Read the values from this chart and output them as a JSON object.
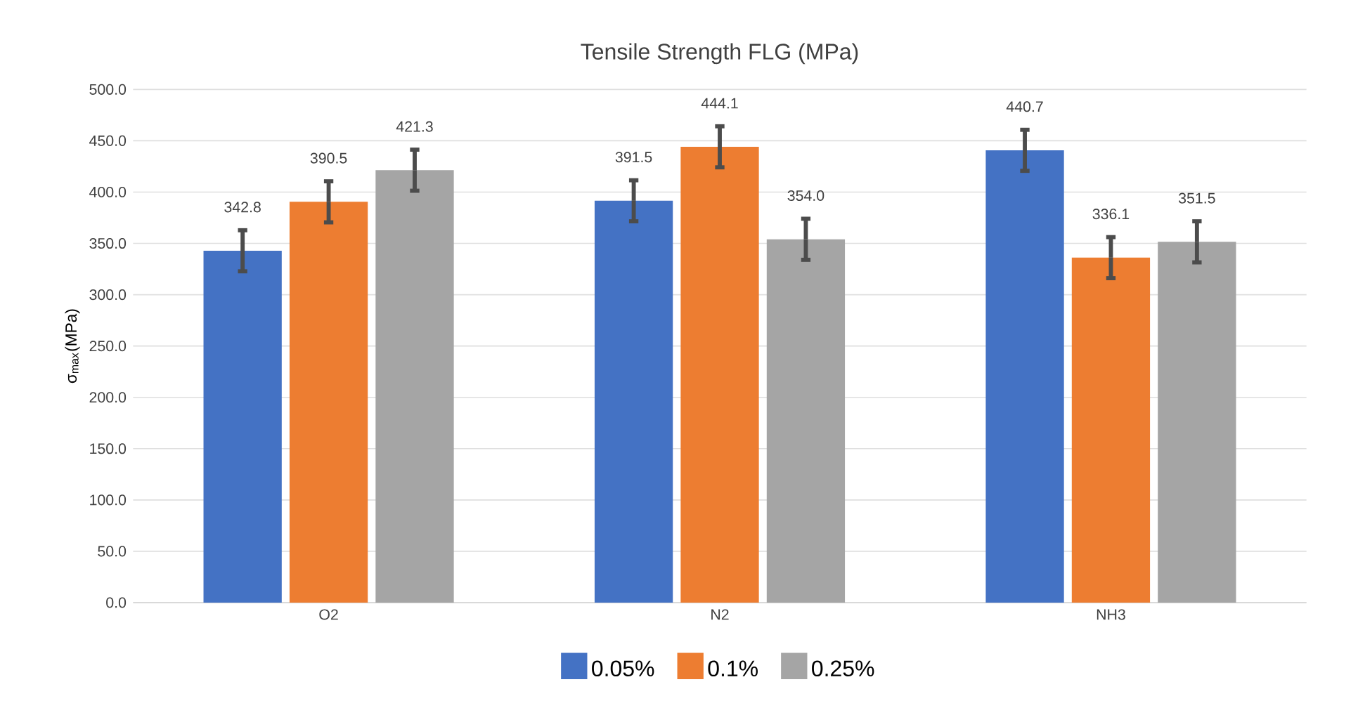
{
  "chart_data": {
    "type": "bar",
    "title": "Tensile Strength FLG (MPa)",
    "ylabel": "σ$_{max}$(MPa)",
    "categories": [
      "O2",
      "N2",
      "NH3"
    ],
    "series": [
      {
        "name": "0.05%",
        "color": "#4472c4",
        "values": [
          342.8,
          391.5,
          440.7
        ],
        "errors": [
          20,
          20,
          20
        ],
        "value_labels": [
          "342.8",
          "391.5",
          "440.7"
        ]
      },
      {
        "name": "0.1%",
        "color": "#ed7d31",
        "values": [
          390.5,
          444.1,
          336.1
        ],
        "errors": [
          20,
          20,
          20
        ],
        "value_labels": [
          "390.5",
          "444.1",
          "336.1"
        ]
      },
      {
        "name": "0.25%",
        "color": "#a5a5a5",
        "values": [
          421.3,
          354.0,
          351.5
        ],
        "errors": [
          20,
          20,
          20
        ],
        "value_labels": [
          "421.3",
          "354.0",
          "351.5"
        ]
      }
    ],
    "ylim": [
      0,
      500
    ],
    "yticks": [
      {
        "value": 0,
        "label": "0.0"
      },
      {
        "value": 50,
        "label": "50.0"
      },
      {
        "value": 100,
        "label": "100.0"
      },
      {
        "value": 150,
        "label": "150.0"
      },
      {
        "value": 200,
        "label": "200.0"
      },
      {
        "value": 250,
        "label": "250.0"
      },
      {
        "value": 300,
        "label": "300.0"
      },
      {
        "value": 350,
        "label": "350.0"
      },
      {
        "value": 400,
        "label": "400.0"
      },
      {
        "value": 450,
        "label": "450.0"
      },
      {
        "value": 500,
        "label": "500.0"
      }
    ],
    "grid": "y",
    "legend": "bottom"
  }
}
